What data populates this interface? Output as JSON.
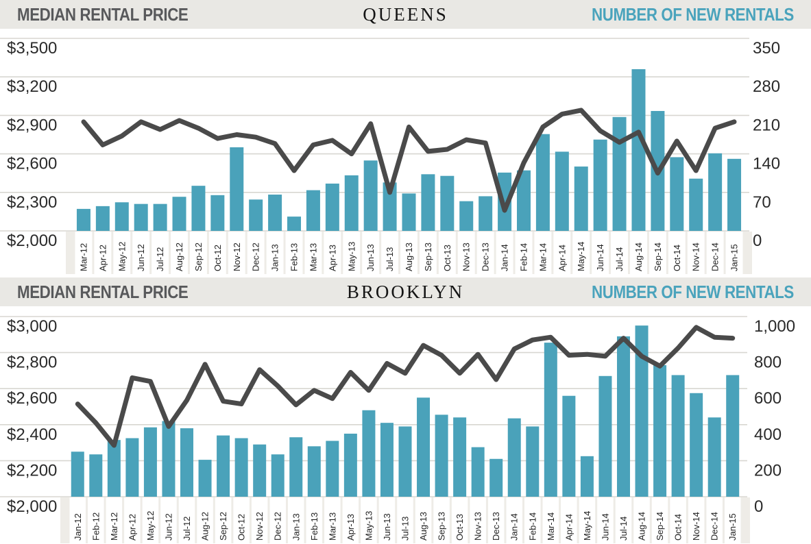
{
  "colors": {
    "bar": "#4aa2ba",
    "line": "#4a4a4a",
    "teal_title": "#4aa3bc",
    "gray_title": "#58595b",
    "header_bg": "#e9e8e4",
    "grid": "#d8d6d1",
    "tick_text": "#2a2a2a",
    "xlabel_text": "#222222",
    "label_strip_bg": "#eeece7",
    "label_cell_bg": "#ffffff"
  },
  "charts": [
    {
      "left_axis_title": "MEDIAN RENTAL PRICE",
      "center_title": "QUEENS",
      "right_axis_title": "NUMBER OF NEW RENTALS",
      "left_ticks": [
        "$3,500",
        "$3,200",
        "$2,900",
        "$2,600",
        "$2,300",
        "$2,000"
      ],
      "right_ticks": [
        "350",
        "280",
        "210",
        "140",
        "70",
        "0"
      ],
      "chart_data": {
        "type": "combo-bar-line",
        "bar_series_name": "Number of new rentals",
        "line_series_name": "Median rental price",
        "bar_axis": {
          "min": 0,
          "max": 350,
          "step": 70,
          "side": "right"
        },
        "line_axis": {
          "min": 2000,
          "max": 3500,
          "step": 300,
          "side": "left",
          "unit": "$"
        },
        "grid": true,
        "categories": [
          "Mar-12",
          "Apr-12",
          "May-12",
          "Jun-12",
          "Jul-12",
          "Aug-12",
          "Sep-12",
          "Oct-12",
          "Nov-12",
          "Dec-12",
          "Jan-13",
          "Feb-13",
          "Mar-13",
          "Apr-13",
          "May-13",
          "Jun-13",
          "Jul-13",
          "Aug-13",
          "Sep-13",
          "Oct-13",
          "Nov-13",
          "Dec-13",
          "Jan-14",
          "Feb-14",
          "Mar-14",
          "Apr-14",
          "May-14",
          "Jun-14",
          "Jul-14",
          "Aug-14",
          "Sep-14",
          "Oct-14",
          "Nov-14",
          "Dec-14",
          "Jan-15"
        ],
        "bars": [
          40,
          45,
          52,
          49,
          49,
          62,
          82,
          65,
          152,
          57,
          66,
          26,
          74,
          86,
          101,
          128,
          88,
          68,
          103,
          100,
          54,
          63,
          106,
          110,
          176,
          144,
          117,
          166,
          207,
          294,
          218,
          134,
          95,
          141,
          131
        ],
        "line": [
          2850,
          2670,
          2740,
          2850,
          2790,
          2860,
          2800,
          2720,
          2750,
          2730,
          2680,
          2470,
          2670,
          2705,
          2600,
          2835,
          2300,
          2810,
          2620,
          2635,
          2710,
          2685,
          2160,
          2530,
          2810,
          2910,
          2940,
          2780,
          2690,
          2770,
          2450,
          2700,
          2470,
          2800,
          2850
        ]
      }
    },
    {
      "left_axis_title": "MEDIAN RENTAL PRICE",
      "center_title": "BROOKLYN",
      "right_axis_title": "NUMBER OF NEW RENTALS",
      "left_ticks": [
        "$3,000",
        "$2,800",
        "$2,600",
        "$2,400",
        "$2,200",
        "$2,000"
      ],
      "right_ticks": [
        "1,000",
        "800",
        "600",
        "400",
        "200",
        "0"
      ],
      "chart_data": {
        "type": "combo-bar-line",
        "bar_series_name": "Number of new rentals",
        "line_series_name": "Median rental price",
        "bar_axis": {
          "min": 0,
          "max": 1000,
          "step": 200,
          "side": "right"
        },
        "line_axis": {
          "min": 2000,
          "max": 3000,
          "step": 200,
          "side": "left",
          "unit": "$"
        },
        "grid": true,
        "categories": [
          "Jan-12",
          "Feb-12",
          "Mar-12",
          "Apr-12",
          "May-12",
          "Jun-12",
          "Jul-12",
          "Aug-12",
          "Sep-12",
          "Oct-12",
          "Nov-12",
          "Dec-12",
          "Jan-13",
          "Feb-13",
          "Mar-13",
          "Apr-13",
          "May-13",
          "Jun-13",
          "Jul-13",
          "Aug-13",
          "Sep-13",
          "Oct-13",
          "Nov-13",
          "Dec-13",
          "Jan-14",
          "Feb-14",
          "Mar-14",
          "Apr-14",
          "May-14",
          "Jun-14",
          "Jul-14",
          "Aug-14",
          "Sep-14",
          "Oct-14",
          "Nov-14",
          "Dec-14",
          "Jan-15"
        ],
        "bars": [
          250,
          235,
          315,
          325,
          385,
          420,
          380,
          205,
          340,
          325,
          290,
          235,
          330,
          280,
          310,
          350,
          480,
          410,
          390,
          550,
          455,
          440,
          275,
          210,
          435,
          390,
          855,
          560,
          225,
          670,
          890,
          950,
          730,
          675,
          575,
          440,
          675
        ],
        "line": [
          2515,
          2410,
          2285,
          2660,
          2640,
          2390,
          2535,
          2735,
          2530,
          2515,
          2705,
          2615,
          2510,
          2590,
          2545,
          2690,
          2590,
          2740,
          2685,
          2840,
          2785,
          2685,
          2790,
          2650,
          2820,
          2870,
          2885,
          2785,
          2790,
          2780,
          2880,
          2780,
          2725,
          2825,
          2940,
          2885,
          2880
        ]
      }
    }
  ]
}
